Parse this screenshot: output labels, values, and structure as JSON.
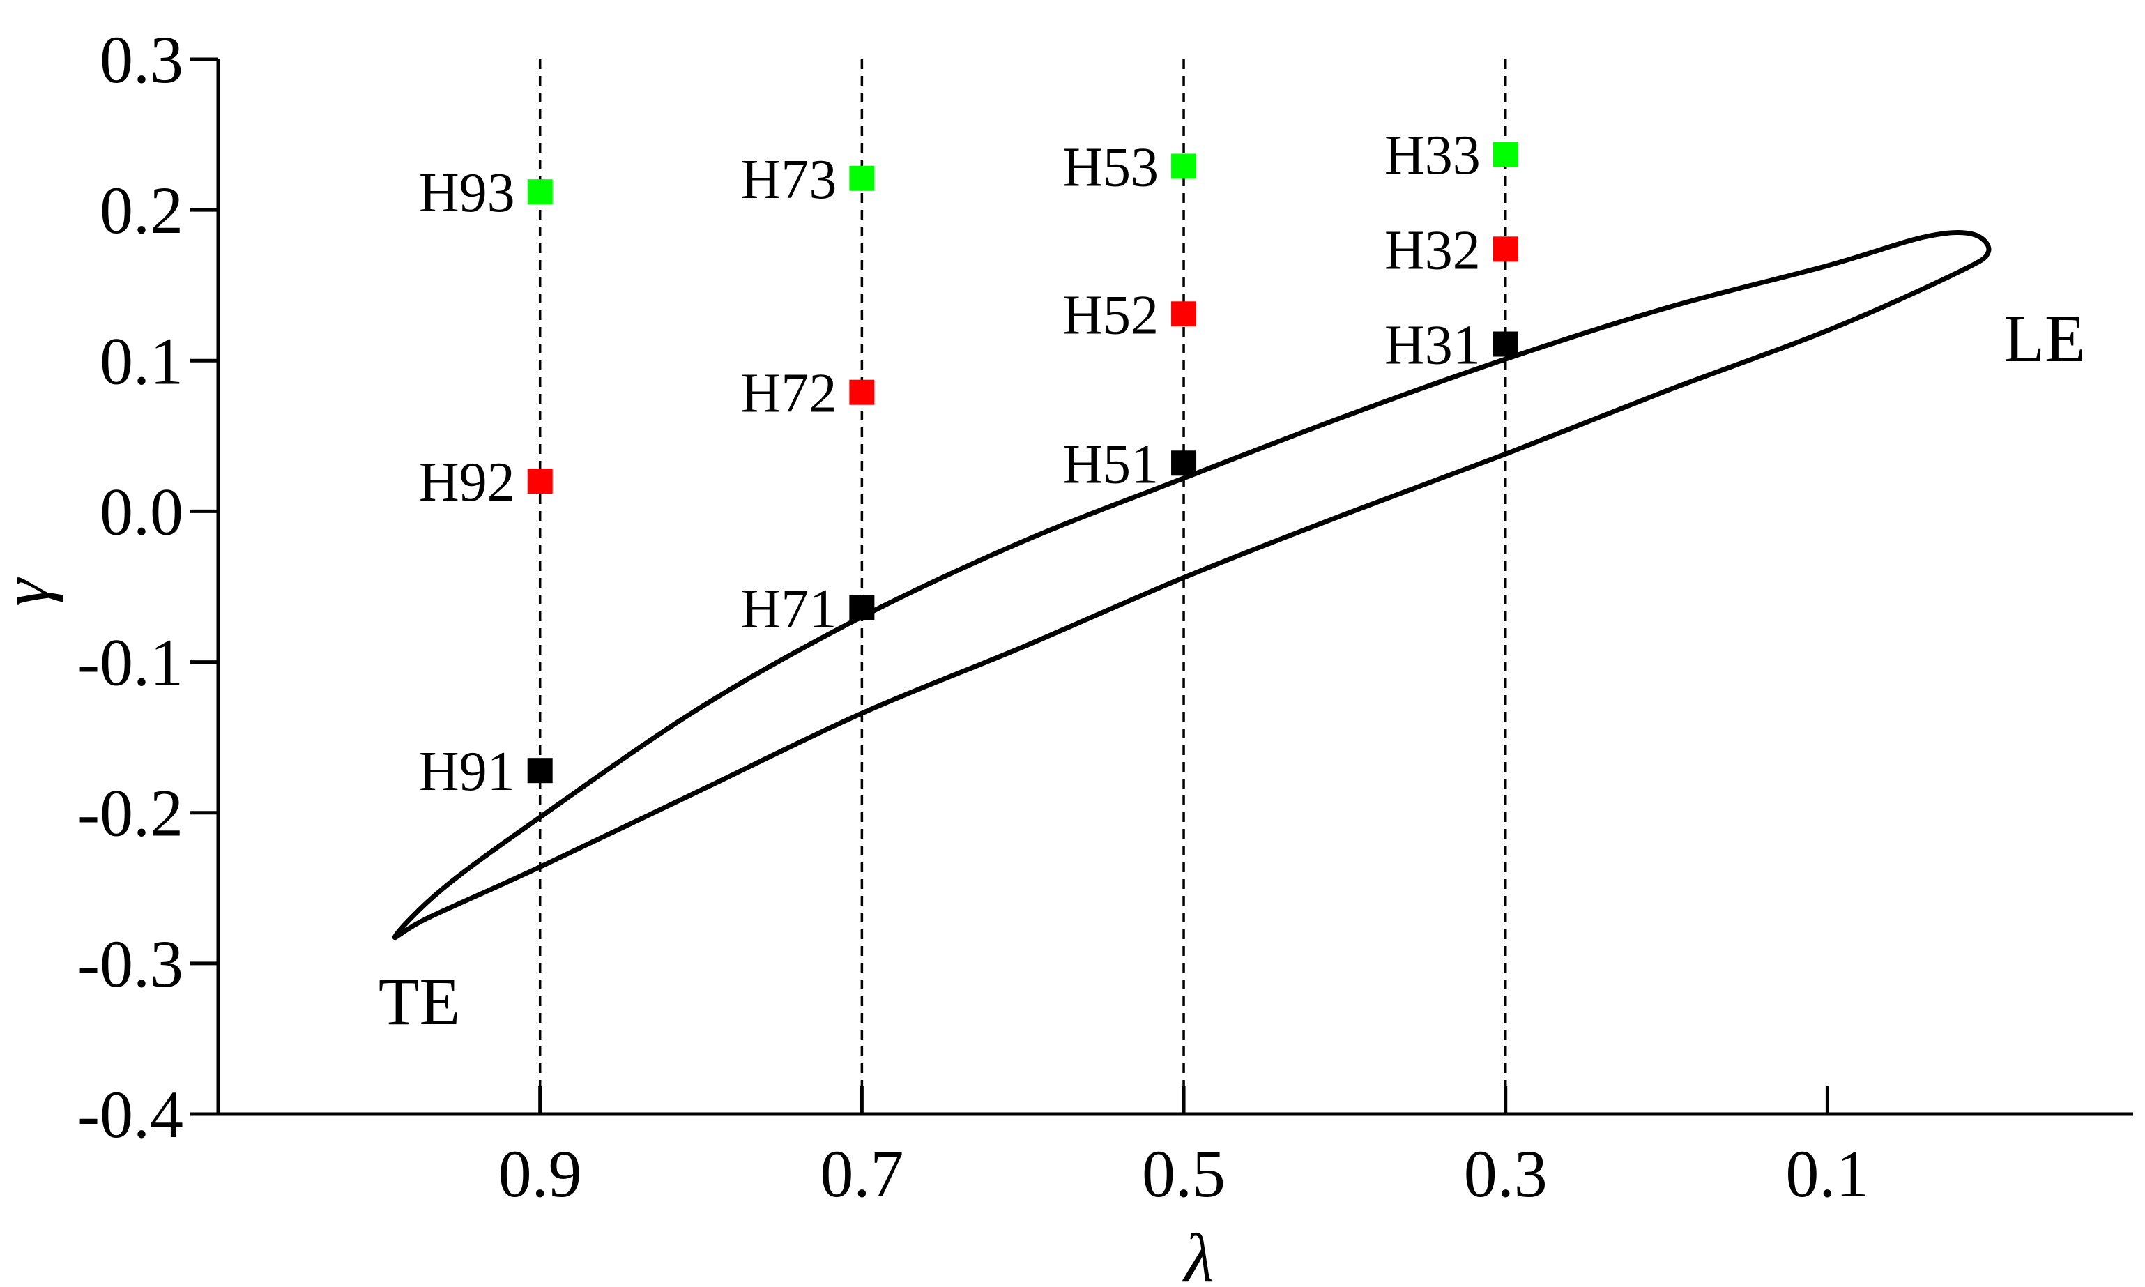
{
  "chart_data": {
    "type": "scatter",
    "title": "",
    "xlabel": "λ",
    "ylabel": "γ",
    "x_axis_reversed": true,
    "xlim": [
      1.1,
      -0.09
    ],
    "ylim": [
      -0.4,
      0.3
    ],
    "x_ticks": [
      0.9,
      0.7,
      0.5,
      0.3,
      0.1
    ],
    "x_tick_labels": [
      "0.9",
      "0.7",
      "0.5",
      "0.3",
      "0.1"
    ],
    "y_ticks": [
      0.3,
      0.2,
      0.1,
      0.0,
      -0.1,
      -0.2,
      -0.3,
      -0.4
    ],
    "y_tick_labels": [
      "0.3",
      "0.2",
      "0.1",
      "0.0",
      "-0.1",
      "-0.2",
      "-0.3",
      "-0.4"
    ],
    "grid": false,
    "legend": "none",
    "reference_lines_x": [
      0.9,
      0.7,
      0.5,
      0.3
    ],
    "series": [
      {
        "color": "#000000",
        "points": [
          {
            "label": "H91",
            "x": 0.9,
            "y": -0.172
          },
          {
            "label": "H71",
            "x": 0.7,
            "y": -0.064
          },
          {
            "label": "H51",
            "x": 0.5,
            "y": 0.032
          },
          {
            "label": "H31",
            "x": 0.3,
            "y": 0.111
          }
        ]
      },
      {
        "color": "#ff0000",
        "points": [
          {
            "label": "H92",
            "x": 0.9,
            "y": 0.02
          },
          {
            "label": "H72",
            "x": 0.7,
            "y": 0.079
          },
          {
            "label": "H52",
            "x": 0.5,
            "y": 0.131
          },
          {
            "label": "H32",
            "x": 0.3,
            "y": 0.174
          }
        ]
      },
      {
        "color": "#00ff00",
        "points": [
          {
            "label": "H93",
            "x": 0.9,
            "y": 0.212
          },
          {
            "label": "H73",
            "x": 0.7,
            "y": 0.221
          },
          {
            "label": "H53",
            "x": 0.5,
            "y": 0.229
          },
          {
            "label": "H33",
            "x": 0.3,
            "y": 0.237
          }
        ]
      }
    ],
    "profile_outline": {
      "upper": [
        [
          0.99,
          -0.282
        ],
        [
          0.96,
          -0.25
        ],
        [
          0.9,
          -0.203
        ],
        [
          0.8,
          -0.13
        ],
        [
          0.7,
          -0.07
        ],
        [
          0.6,
          -0.02
        ],
        [
          0.5,
          0.022
        ],
        [
          0.4,
          0.063
        ],
        [
          0.3,
          0.101
        ],
        [
          0.2,
          0.135
        ],
        [
          0.1,
          0.163
        ],
        [
          0.04,
          0.182
        ],
        [
          0.01,
          0.184
        ]
      ],
      "lower": [
        [
          0.0,
          0.172
        ],
        [
          0.02,
          0.158
        ],
        [
          0.1,
          0.12
        ],
        [
          0.2,
          0.08
        ],
        [
          0.3,
          0.038
        ],
        [
          0.4,
          -0.002
        ],
        [
          0.5,
          -0.044
        ],
        [
          0.6,
          -0.09
        ],
        [
          0.7,
          -0.134
        ],
        [
          0.8,
          -0.185
        ],
        [
          0.9,
          -0.236
        ],
        [
          0.97,
          -0.27
        ]
      ]
    },
    "annotations": [
      {
        "text": "TE",
        "x": 0.975,
        "y": -0.325
      },
      {
        "text": "LE",
        "x": -0.035,
        "y": 0.115
      }
    ]
  }
}
